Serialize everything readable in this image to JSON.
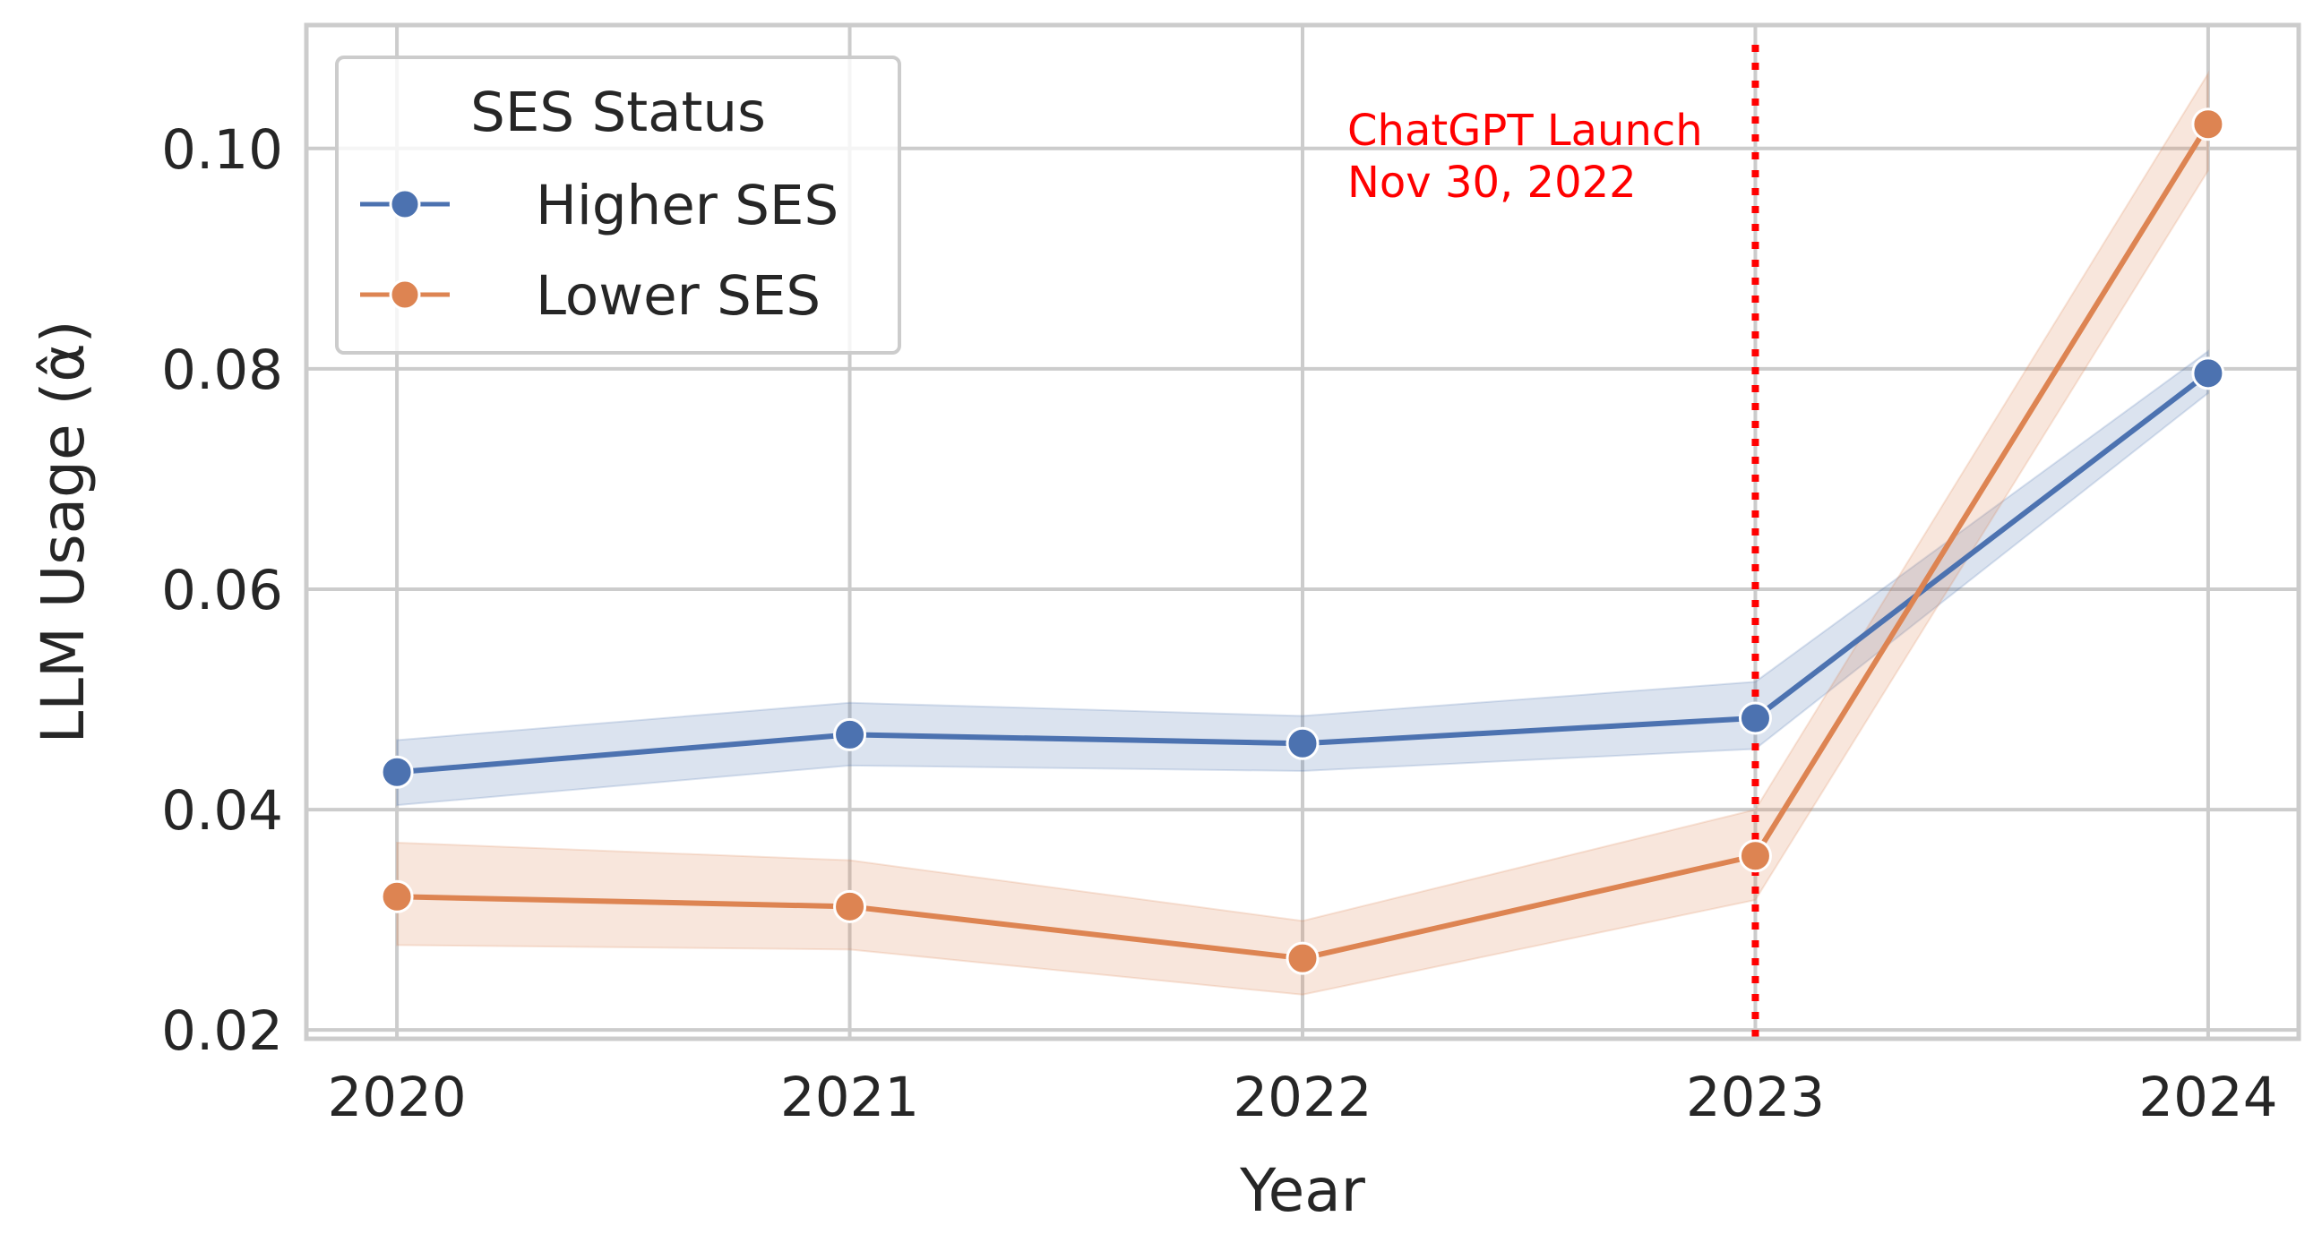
{
  "chart_data": {
    "type": "line",
    "xlabel": "Year",
    "ylabel": "LLM Usage (α̂)",
    "categories": [
      "2020",
      "2021",
      "2022",
      "2023",
      "2024"
    ],
    "x": [
      2020,
      2021,
      2022,
      2023,
      2024
    ],
    "xlim": [
      2019.8,
      2024.2
    ],
    "ylim": [
      0.0192,
      0.1112
    ],
    "yticks": [
      0.02,
      0.04,
      0.06,
      0.08,
      0.1
    ],
    "ytick_labels": [
      "0.02",
      "0.04",
      "0.06",
      "0.08",
      "0.10"
    ],
    "grid": true,
    "series": [
      {
        "name": "Higher SES",
        "color": "#4c72b0",
        "values": [
          0.0434,
          0.0468,
          0.046,
          0.0483,
          0.0796
        ],
        "ci_low": [
          0.0404,
          0.044,
          0.0435,
          0.0455,
          0.0778
        ],
        "ci_high": [
          0.0463,
          0.0497,
          0.0485,
          0.0516,
          0.0816
        ]
      },
      {
        "name": "Lower SES",
        "color": "#dd8452",
        "values": [
          0.0321,
          0.0312,
          0.0265,
          0.0358,
          0.1022
        ],
        "ci_low": [
          0.0277,
          0.0273,
          0.0232,
          0.0318,
          0.098
        ],
        "ci_high": [
          0.037,
          0.0354,
          0.0299,
          0.04,
          0.1068
        ]
      }
    ],
    "legend": {
      "title": "SES Status",
      "placement": "top-left",
      "entries": [
        "Higher SES",
        "Lower SES"
      ]
    },
    "annotations": [
      {
        "type": "vline",
        "x": 2023,
        "color": "#ff0000",
        "style": "dotted",
        "text_lines": [
          "ChatGPT Launch",
          "Nov 30, 2022"
        ]
      }
    ]
  }
}
